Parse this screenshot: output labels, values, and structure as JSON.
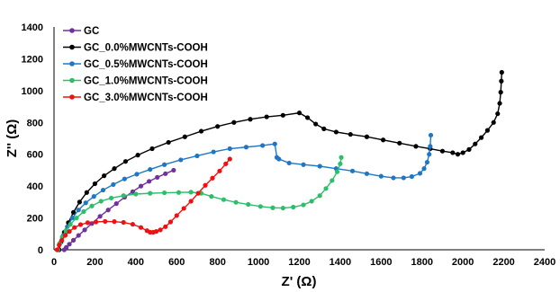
{
  "chart_data": {
    "type": "scatter",
    "title": "",
    "xlabel": "Z' (Ω)",
    "ylabel": "Z'' (Ω)",
    "xlim": [
      0,
      2400
    ],
    "ylim": [
      0,
      1400
    ],
    "xticks": [
      0,
      200,
      400,
      600,
      800,
      1000,
      1200,
      1400,
      1600,
      1800,
      2000,
      2200,
      2400
    ],
    "yticks": [
      0,
      200,
      400,
      600,
      800,
      1000,
      1200,
      1400
    ],
    "grid": false,
    "legend_position": "top-left",
    "series": [
      {
        "name": "GC",
        "color": "#7030a0",
        "points": [
          [
            50,
            0
          ],
          [
            60,
            15
          ],
          [
            75,
            35
          ],
          [
            95,
            60
          ],
          [
            120,
            90
          ],
          [
            150,
            125
          ],
          [
            185,
            165
          ],
          [
            225,
            210
          ],
          [
            265,
            250
          ],
          [
            305,
            290
          ],
          [
            345,
            330
          ],
          [
            385,
            365
          ],
          [
            425,
            400
          ],
          [
            465,
            430
          ],
          [
            505,
            455
          ],
          [
            545,
            478
          ],
          [
            585,
            500
          ]
        ]
      },
      {
        "name": "GC_0.0%MWCNTs-COOH",
        "color": "#000000",
        "points": [
          [
            25,
            0
          ],
          [
            35,
            50
          ],
          [
            50,
            110
          ],
          [
            70,
            170
          ],
          [
            95,
            235
          ],
          [
            125,
            300
          ],
          [
            160,
            360
          ],
          [
            200,
            415
          ],
          [
            245,
            465
          ],
          [
            295,
            510
          ],
          [
            350,
            555
          ],
          [
            410,
            595
          ],
          [
            480,
            635
          ],
          [
            560,
            675
          ],
          [
            640,
            710
          ],
          [
            720,
            745
          ],
          [
            800,
            775
          ],
          [
            880,
            800
          ],
          [
            960,
            820
          ],
          [
            1040,
            835
          ],
          [
            1120,
            845
          ],
          [
            1200,
            860
          ],
          [
            1240,
            830
          ],
          [
            1280,
            790
          ],
          [
            1320,
            760
          ],
          [
            1380,
            740
          ],
          [
            1450,
            725
          ],
          [
            1530,
            710
          ],
          [
            1610,
            690
          ],
          [
            1690,
            670
          ],
          [
            1770,
            650
          ],
          [
            1840,
            635
          ],
          [
            1900,
            620
          ],
          [
            1950,
            610
          ],
          [
            1975,
            600
          ],
          [
            2000,
            610
          ],
          [
            2030,
            630
          ],
          [
            2060,
            665
          ],
          [
            2090,
            705
          ],
          [
            2120,
            750
          ],
          [
            2150,
            800
          ],
          [
            2170,
            855
          ],
          [
            2180,
            920
          ],
          [
            2185,
            990
          ],
          [
            2188,
            1060
          ],
          [
            2190,
            1115
          ]
        ]
      },
      {
        "name": "GC_0.5%MWCNTs-COOH",
        "color": "#1f77c4",
        "points": [
          [
            20,
            0
          ],
          [
            30,
            40
          ],
          [
            45,
            90
          ],
          [
            65,
            145
          ],
          [
            90,
            200
          ],
          [
            120,
            250
          ],
          [
            155,
            295
          ],
          [
            195,
            335
          ],
          [
            240,
            375
          ],
          [
            290,
            410
          ],
          [
            345,
            445
          ],
          [
            405,
            475
          ],
          [
            470,
            505
          ],
          [
            540,
            535
          ],
          [
            620,
            565
          ],
          [
            700,
            590
          ],
          [
            780,
            615
          ],
          [
            860,
            635
          ],
          [
            940,
            645
          ],
          [
            1020,
            655
          ],
          [
            1080,
            665
          ],
          [
            1090,
            580
          ],
          [
            1100,
            570
          ],
          [
            1150,
            545
          ],
          [
            1220,
            535
          ],
          [
            1300,
            525
          ],
          [
            1380,
            510
          ],
          [
            1460,
            495
          ],
          [
            1530,
            478
          ],
          [
            1600,
            462
          ],
          [
            1660,
            452
          ],
          [
            1710,
            452
          ],
          [
            1750,
            460
          ],
          [
            1790,
            480
          ],
          [
            1810,
            510
          ],
          [
            1825,
            550
          ],
          [
            1835,
            600
          ],
          [
            1840,
            650
          ],
          [
            1843,
            720
          ]
        ]
      },
      {
        "name": "GC_1.0%MWCNTs-COOH",
        "color": "#2bbf6a",
        "points": [
          [
            18,
            0
          ],
          [
            28,
            40
          ],
          [
            40,
            80
          ],
          [
            58,
            120
          ],
          [
            80,
            160
          ],
          [
            110,
            200
          ],
          [
            145,
            240
          ],
          [
            185,
            275
          ],
          [
            230,
            305
          ],
          [
            280,
            325
          ],
          [
            340,
            340
          ],
          [
            400,
            350
          ],
          [
            470,
            355
          ],
          [
            540,
            358
          ],
          [
            610,
            360
          ],
          [
            670,
            362
          ],
          [
            720,
            355
          ],
          [
            770,
            335
          ],
          [
            830,
            315
          ],
          [
            890,
            298
          ],
          [
            950,
            285
          ],
          [
            1010,
            272
          ],
          [
            1070,
            264
          ],
          [
            1120,
            262
          ],
          [
            1170,
            268
          ],
          [
            1220,
            282
          ],
          [
            1260,
            305
          ],
          [
            1300,
            340
          ],
          [
            1330,
            385
          ],
          [
            1360,
            435
          ],
          [
            1385,
            490
          ],
          [
            1400,
            540
          ],
          [
            1405,
            580
          ]
        ]
      },
      {
        "name": "GC_3.0%MWCNTs-COOH",
        "color": "#ee1111",
        "points": [
          [
            15,
            0
          ],
          [
            25,
            30
          ],
          [
            38,
            60
          ],
          [
            55,
            90
          ],
          [
            75,
            115
          ],
          [
            100,
            140
          ],
          [
            130,
            158
          ],
          [
            165,
            170
          ],
          [
            205,
            175
          ],
          [
            250,
            178
          ],
          [
            295,
            177
          ],
          [
            340,
            172
          ],
          [
            385,
            160
          ],
          [
            425,
            140
          ],
          [
            455,
            120
          ],
          [
            470,
            110
          ],
          [
            485,
            110
          ],
          [
            500,
            115
          ],
          [
            520,
            125
          ],
          [
            545,
            145
          ],
          [
            570,
            175
          ],
          [
            600,
            215
          ],
          [
            635,
            260
          ],
          [
            670,
            305
          ],
          [
            705,
            355
          ],
          [
            740,
            405
          ],
          [
            775,
            450
          ],
          [
            810,
            495
          ],
          [
            840,
            540
          ],
          [
            860,
            570
          ]
        ]
      }
    ]
  }
}
